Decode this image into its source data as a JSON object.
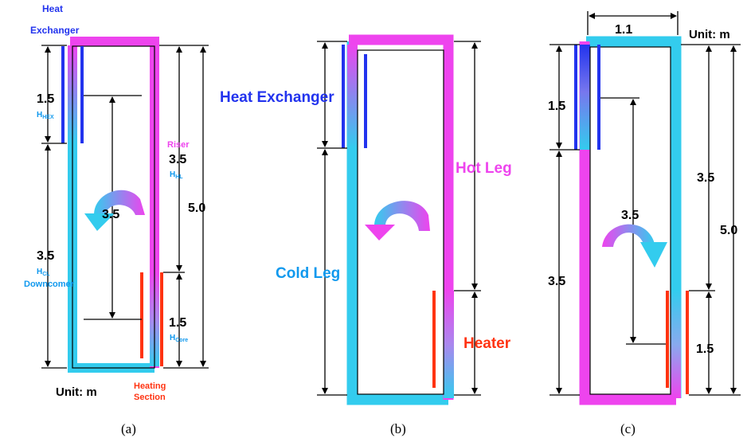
{
  "colors": {
    "magenta": "#ee44ee",
    "cyan": "#33ccee",
    "blue": "#2233ee",
    "red": "#ff3311",
    "label_blue": "#1199ee"
  },
  "panel_a": {
    "heat_exchanger": "Heat\nExchanger",
    "hex_dim": "1.5",
    "hex_sub_base": "H",
    "hex_sub": "HEX",
    "riser": "Riser",
    "hl_dim": "3.5",
    "hl_sub_base": "H",
    "hl_sub": "HL",
    "total_dim": "5.0",
    "flow_dim": "3.5",
    "cl_dim": "3.5",
    "cl_sub_base": "H",
    "cl_sub": "CL",
    "downcomer": "Downcomer",
    "core_dim": "1.5",
    "core_sub_base": "H",
    "core_sub": "Core",
    "unit": "Unit: m",
    "heating_section": "Heating\nSection",
    "caption": "(a)"
  },
  "panel_b": {
    "heat_exchanger": "Heat Exchanger",
    "hot_leg": "Hot Leg",
    "cold_leg": "Cold Leg",
    "heater": "Heater",
    "caption": "(b)"
  },
  "panel_c": {
    "width_dim": "1.1",
    "unit": "Unit: m",
    "hex_dim": "1.5",
    "flow_dim": "3.5",
    "upper_dim": "3.5",
    "total_dim": "5.0",
    "lower_dim": "3.5",
    "core_dim": "1.5",
    "caption": "(c)"
  }
}
